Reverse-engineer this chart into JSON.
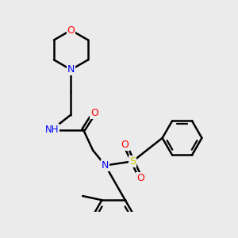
{
  "background_color": "#ebebeb",
  "atom_colors": {
    "C": "#000000",
    "N": "#0000ff",
    "O": "#ff0000",
    "S": "#cccc00",
    "Cl": "#00bb00",
    "H": "#808080"
  },
  "bond_color": "#000000",
  "bond_width": 1.8,
  "figsize": [
    3.0,
    3.0
  ],
  "dpi": 100
}
